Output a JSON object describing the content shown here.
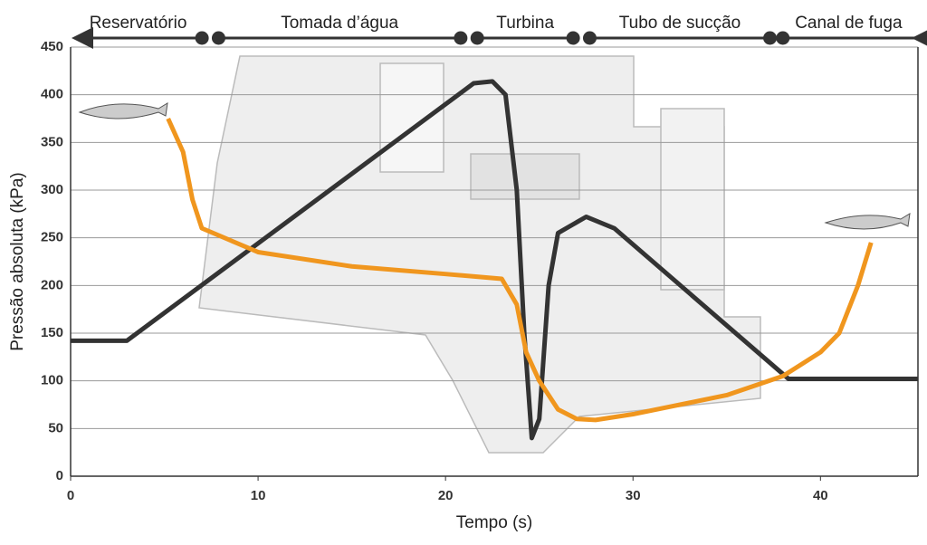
{
  "chart_data": {
    "type": "line",
    "x_label": "Tempo (s)",
    "y_label": "Pressão absoluta (kPa)",
    "xlim": [
      0,
      45.2
    ],
    "ylim": [
      0,
      450
    ],
    "xticks": [
      0,
      10,
      20,
      30,
      40
    ],
    "yticks": [
      0,
      50,
      100,
      150,
      200,
      250,
      300,
      350,
      400,
      450
    ],
    "grid": true,
    "regions": [
      {
        "label": "Reservatório",
        "x": [
          0,
          7.2
        ]
      },
      {
        "label": "Tomada d’água",
        "x": [
          7.7,
          21
        ]
      },
      {
        "label": "Turbina",
        "x": [
          21.5,
          27
        ]
      },
      {
        "label": "Tubo de sucção",
        "x": [
          27.5,
          37.5
        ]
      },
      {
        "label": "Canal de fuga",
        "x": [
          37.8,
          45.2
        ]
      }
    ],
    "series": [
      {
        "color": "#333333",
        "x": [
          0,
          3,
          21.5,
          22.5,
          23.2,
          23.8,
          24.2,
          24.6,
          25,
          25.5,
          26,
          27.5,
          29,
          38.3,
          45.2
        ],
        "values": [
          142,
          142,
          412,
          414,
          400,
          300,
          150,
          40,
          60,
          200,
          255,
          272,
          260,
          102,
          102
        ]
      },
      {
        "color": "#f0961e",
        "x": [
          5.2,
          6,
          6.5,
          7,
          10,
          15,
          20,
          23,
          23.8,
          24.3,
          25,
          26,
          27,
          28,
          30,
          35,
          38,
          40,
          41,
          42,
          42.7
        ],
        "values": [
          375,
          340,
          290,
          260,
          235,
          220,
          212,
          207,
          180,
          130,
          100,
          70,
          60,
          59,
          65,
          85,
          105,
          130,
          150,
          200,
          245
        ]
      }
    ]
  }
}
